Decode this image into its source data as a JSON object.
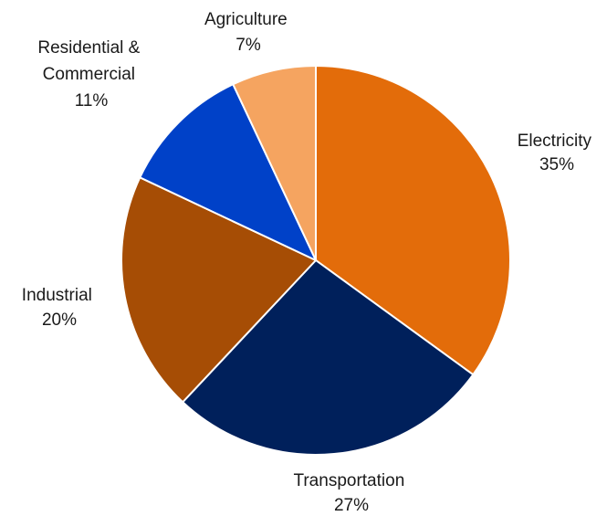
{
  "chart_data": {
    "type": "pie",
    "title": "",
    "start_angle_deg": 0,
    "direction": "clockwise",
    "legend": "none",
    "slices": [
      {
        "name": "Electricity",
        "value": 35,
        "label": "35%",
        "color": "#E36C0A"
      },
      {
        "name": "Transportation",
        "value": 27,
        "label": "27%",
        "color": "#00205B"
      },
      {
        "name": "Industrial",
        "value": 20,
        "label": "20%",
        "color": "#A64D05"
      },
      {
        "name": "Residential & Commercial",
        "label_lines": [
          "Residential &",
          "Commercial"
        ],
        "value": 11,
        "label": "11%",
        "color": "#0041C8"
      },
      {
        "name": "Agriculture",
        "value": 7,
        "label": "7%",
        "color": "#F5A460"
      }
    ]
  }
}
